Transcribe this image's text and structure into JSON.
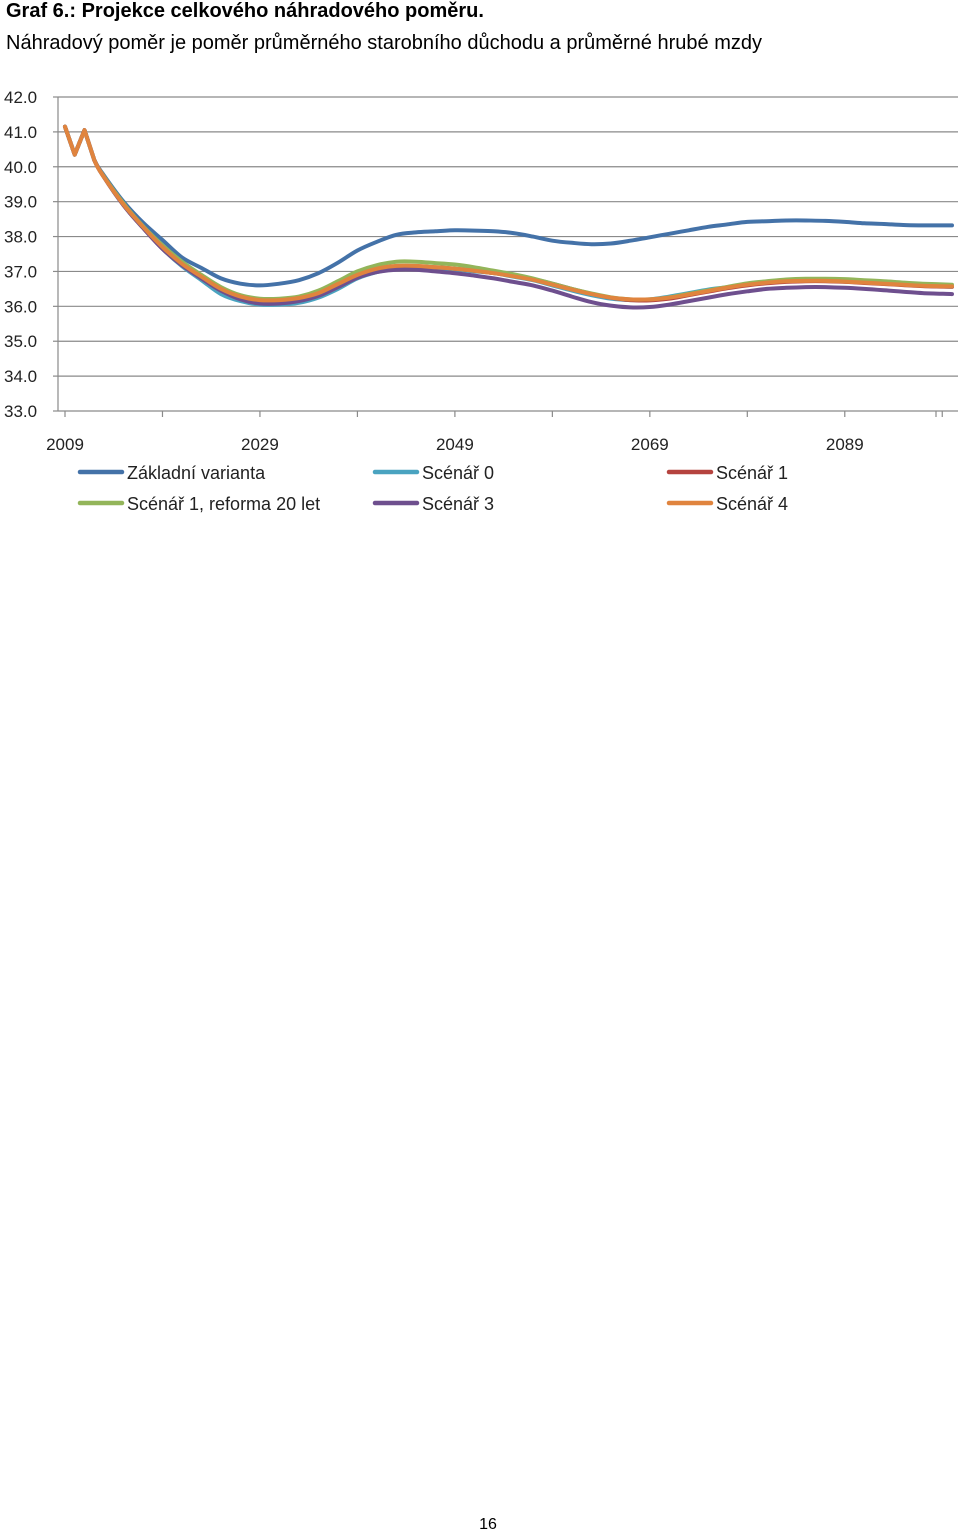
{
  "header": {
    "title": "Graf 6.: Projekce celkového náhradového poměru.",
    "subtitle": "Náhradový poměr je poměr průměrného starobního důchodu a průměrné hrubé mzdy"
  },
  "page_number": "16",
  "chart_data": {
    "type": "line",
    "title": "",
    "xlabel": "",
    "ylabel": "",
    "ylim": [
      33.0,
      42.0
    ],
    "yticks": [
      "42.0",
      "41.0",
      "40.0",
      "39.0",
      "38.0",
      "37.0",
      "36.0",
      "35.0",
      "34.0",
      "33.0"
    ],
    "xticks": [
      "2009",
      "2029",
      "2049",
      "2069",
      "2089"
    ],
    "xlim": [
      2009,
      2100
    ],
    "grid": true,
    "legend_position": "bottom",
    "x": [
      2009,
      2010,
      2011,
      2012,
      2013,
      2015,
      2017,
      2019,
      2021,
      2023,
      2025,
      2027,
      2029,
      2031,
      2033,
      2035,
      2037,
      2039,
      2041,
      2043,
      2045,
      2047,
      2049,
      2051,
      2053,
      2055,
      2057,
      2059,
      2061,
      2063,
      2065,
      2067,
      2069,
      2071,
      2073,
      2075,
      2077,
      2079,
      2081,
      2083,
      2085,
      2087,
      2089,
      2091,
      2093,
      2095,
      2097,
      2100
    ],
    "series": [
      {
        "name": "Základní varianta",
        "color": "#4472a8",
        "values": [
          41.15,
          40.35,
          41.05,
          40.2,
          39.75,
          39.0,
          38.4,
          37.9,
          37.4,
          37.1,
          36.8,
          36.65,
          36.6,
          36.65,
          36.75,
          36.95,
          37.25,
          37.6,
          37.85,
          38.05,
          38.12,
          38.15,
          38.18,
          38.17,
          38.15,
          38.1,
          38.0,
          37.88,
          37.82,
          37.78,
          37.8,
          37.88,
          37.98,
          38.08,
          38.18,
          38.28,
          38.35,
          38.42,
          38.44,
          38.46,
          38.46,
          38.45,
          38.42,
          38.38,
          38.36,
          38.33,
          38.32,
          38.32
        ]
      },
      {
        "name": "Scénář 0",
        "color": "#4aa3c0",
        "values": [
          41.15,
          40.35,
          41.05,
          40.2,
          39.7,
          38.9,
          38.25,
          37.65,
          37.15,
          36.75,
          36.35,
          36.15,
          36.05,
          36.05,
          36.1,
          36.25,
          36.5,
          36.8,
          36.98,
          37.08,
          37.1,
          37.08,
          37.05,
          37.0,
          36.95,
          36.85,
          36.75,
          36.6,
          36.45,
          36.32,
          36.22,
          36.18,
          36.2,
          36.28,
          36.38,
          36.48,
          36.55,
          36.63,
          36.68,
          36.72,
          36.74,
          36.74,
          36.72,
          36.69,
          36.66,
          36.62,
          36.59,
          36.56
        ]
      },
      {
        "name": "Scénář 1",
        "color": "#b5433f",
        "values": [
          41.15,
          40.35,
          41.05,
          40.2,
          39.7,
          38.9,
          38.25,
          37.65,
          37.18,
          36.8,
          36.45,
          36.22,
          36.12,
          36.12,
          36.18,
          36.32,
          36.58,
          36.85,
          37.02,
          37.12,
          37.14,
          37.12,
          37.08,
          37.02,
          36.95,
          36.88,
          36.78,
          36.65,
          36.5,
          36.36,
          36.25,
          36.18,
          36.17,
          36.22,
          36.32,
          36.42,
          36.52,
          36.6,
          36.66,
          36.7,
          36.72,
          36.72,
          36.7,
          36.67,
          36.64,
          36.61,
          36.58,
          36.56
        ]
      },
      {
        "name": "Scénář 1, reforma 20 let",
        "color": "#93b55a",
        "values": [
          41.15,
          40.35,
          41.05,
          40.2,
          39.72,
          38.95,
          38.3,
          37.75,
          37.28,
          36.9,
          36.55,
          36.32,
          36.22,
          36.22,
          36.28,
          36.45,
          36.72,
          37.0,
          37.18,
          37.28,
          37.28,
          37.24,
          37.2,
          37.12,
          37.02,
          36.92,
          36.8,
          36.65,
          36.5,
          36.37,
          36.26,
          36.2,
          36.2,
          36.26,
          36.36,
          36.46,
          36.56,
          36.66,
          36.72,
          36.77,
          36.79,
          36.79,
          36.78,
          36.75,
          36.72,
          36.68,
          36.65,
          36.62
        ]
      },
      {
        "name": "Scénář 3",
        "color": "#6e4f8e",
        "values": [
          41.15,
          40.35,
          41.05,
          40.2,
          39.7,
          38.9,
          38.25,
          37.65,
          37.18,
          36.8,
          36.45,
          36.2,
          36.08,
          36.08,
          36.15,
          36.3,
          36.55,
          36.82,
          36.98,
          37.05,
          37.05,
          37.0,
          36.95,
          36.88,
          36.8,
          36.7,
          36.6,
          36.45,
          36.28,
          36.12,
          36.02,
          35.97,
          35.98,
          36.05,
          36.15,
          36.25,
          36.35,
          36.43,
          36.5,
          36.53,
          36.55,
          36.55,
          36.53,
          36.5,
          36.46,
          36.42,
          36.38,
          36.35
        ]
      },
      {
        "name": "Scénář 4",
        "color": "#e0843e",
        "values": [
          41.15,
          40.35,
          41.05,
          40.2,
          39.7,
          38.92,
          38.28,
          37.7,
          37.22,
          36.85,
          36.5,
          36.28,
          36.18,
          36.18,
          36.24,
          36.38,
          36.64,
          36.9,
          37.08,
          37.16,
          37.16,
          37.12,
          37.08,
          37.02,
          36.95,
          36.86,
          36.76,
          36.62,
          36.48,
          36.35,
          36.25,
          36.2,
          36.2,
          36.25,
          36.34,
          36.44,
          36.54,
          36.62,
          36.68,
          36.72,
          36.73,
          36.73,
          36.71,
          36.68,
          36.65,
          36.62,
          36.59,
          36.57
        ]
      }
    ]
  }
}
